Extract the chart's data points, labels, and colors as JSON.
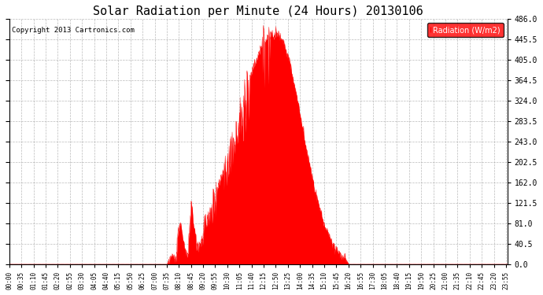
{
  "title": "Solar Radiation per Minute (24 Hours) 20130106",
  "copyright_text": "Copyright 2013 Cartronics.com",
  "legend_label": "Radiation (W/m2)",
  "ylim": [
    0.0,
    486.0
  ],
  "yticks": [
    0.0,
    40.5,
    81.0,
    121.5,
    162.0,
    202.5,
    243.0,
    283.5,
    324.0,
    364.5,
    405.0,
    445.5,
    486.0
  ],
  "fill_color": "#FF0000",
  "bg_color": "#FFFFFF",
  "grid_color": "#AAAAAA",
  "title_fontsize": 11,
  "total_minutes": 1440,
  "sunrise_minute": 455,
  "sunset_minute": 980,
  "tick_interval_minutes": 35
}
